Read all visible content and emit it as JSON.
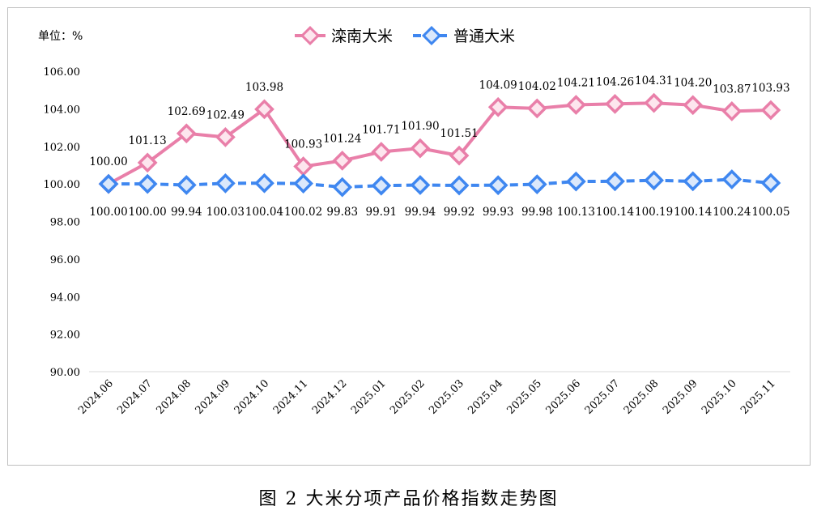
{
  "caption": "图 2  大米分项产品价格指数走势图",
  "unit_label": "单位：%",
  "chart_data": {
    "type": "line",
    "title": "",
    "xlabel": "",
    "ylabel": "",
    "ylim": [
      90,
      106
    ],
    "y_ticks": [
      "90.00",
      "92.00",
      "94.00",
      "96.00",
      "98.00",
      "100.00",
      "102.00",
      "104.00",
      "106.00"
    ],
    "grid": false,
    "legend_position": "top-center",
    "categories": [
      "2024.06",
      "2024.07",
      "2024.08",
      "2024.09",
      "2024.10",
      "2024.11",
      "2024.12",
      "2025.01",
      "2025.02",
      "2025.03",
      "2025.04",
      "2025.05",
      "2025.06",
      "2025.07",
      "2025.08",
      "2025.09",
      "2025.10",
      "2025.11"
    ],
    "series": [
      {
        "name": "滦南大米",
        "color": "#e97fa9",
        "marker_fill": "#fde6ee",
        "line_style": "solid",
        "values": [
          100.0,
          101.13,
          102.69,
          102.49,
          103.98,
          100.93,
          101.24,
          101.71,
          101.9,
          101.51,
          104.09,
          104.02,
          104.21,
          104.26,
          104.31,
          104.2,
          103.87,
          103.93
        ],
        "labels": [
          "100.00",
          "101.13",
          "102.69",
          "102.49",
          "103.98",
          "100.93",
          "101.24",
          "101.71",
          "101.90",
          "101.51",
          "104.09",
          "104.02",
          "104.21",
          "104.26",
          "104.31",
          "104.20",
          "103.87",
          "103.93"
        ]
      },
      {
        "name": "普通大米",
        "color": "#3f87f0",
        "marker_fill": "#dbe8fb",
        "line_style": "dashed",
        "values": [
          100.0,
          100.0,
          99.94,
          100.03,
          100.04,
          100.02,
          99.83,
          99.91,
          99.94,
          99.92,
          99.93,
          99.98,
          100.13,
          100.14,
          100.19,
          100.14,
          100.24,
          100.05
        ],
        "labels": [
          "100.00",
          "100.00",
          "99.94",
          "100.03",
          "100.04",
          "100.02",
          "99.83",
          "99.91",
          "99.94",
          "99.92",
          "99.93",
          "99.98",
          "100.13",
          "100.14",
          "100.19",
          "100.14",
          "100.24",
          "100.05"
        ]
      }
    ]
  }
}
